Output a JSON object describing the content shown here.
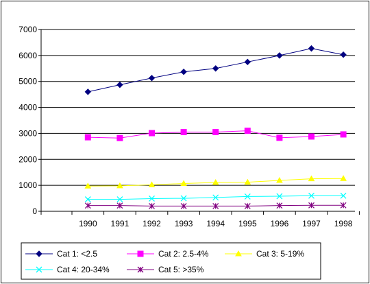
{
  "chart_data": {
    "type": "line",
    "title": "",
    "xlabel": "",
    "ylabel": "",
    "categories": [
      "1990",
      "1991",
      "1992",
      "1993",
      "1994",
      "1995",
      "1996",
      "1997",
      "1998"
    ],
    "ylim": [
      0,
      7000
    ],
    "yticks": [
      "0",
      "1000",
      "2000",
      "3000",
      "4000",
      "5000",
      "6000",
      "7000"
    ],
    "grid": "horizontal",
    "legend_position": "bottom",
    "series": [
      {
        "name": "Cat 1: <2.5",
        "color": "#000080",
        "marker": "diamond",
        "values": [
          4600,
          4870,
          5130,
          5370,
          5500,
          5750,
          6000,
          6270,
          6030
        ]
      },
      {
        "name": "Cat 2: 2.5-4%",
        "color": "#ff00ff",
        "marker": "square",
        "values": [
          2850,
          2820,
          3010,
          3050,
          3050,
          3100,
          2830,
          2880,
          2960
        ]
      },
      {
        "name": "Cat 3: 5-19%",
        "color": "#ffff00",
        "marker": "triangle",
        "values": [
          970,
          980,
          1020,
          1070,
          1110,
          1120,
          1190,
          1250,
          1260
        ]
      },
      {
        "name": "Cat 4: 20-34%",
        "color": "#00ffff",
        "marker": "x",
        "values": [
          460,
          460,
          490,
          500,
          530,
          570,
          580,
          600,
          600
        ]
      },
      {
        "name": "Cat 5: >35%",
        "color": "#800080",
        "marker": "star",
        "values": [
          220,
          220,
          200,
          200,
          200,
          200,
          220,
          230,
          230
        ]
      }
    ]
  }
}
